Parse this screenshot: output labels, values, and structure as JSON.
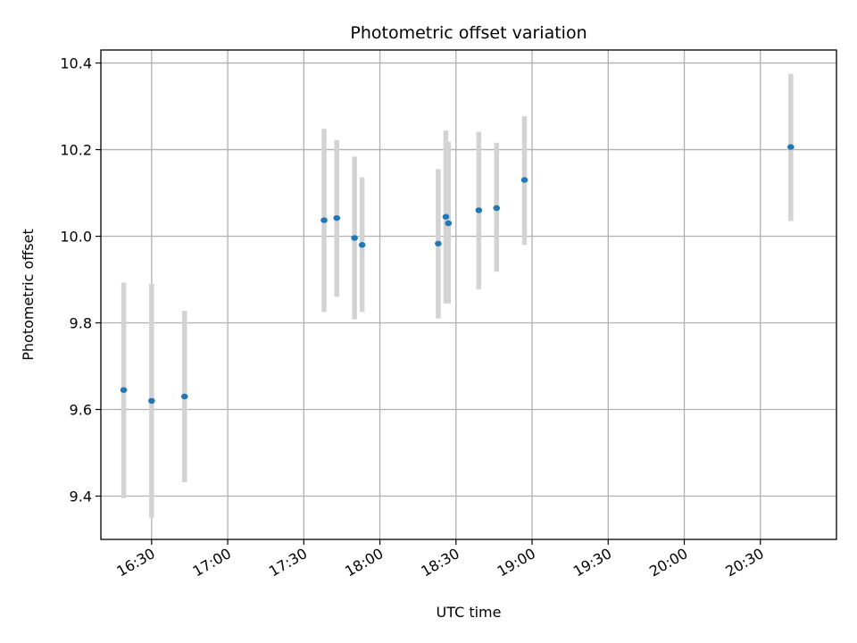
{
  "chart_data": {
    "type": "scatter",
    "title": "Photometric offset variation",
    "xlabel": "UTC time",
    "ylabel": "Photometric offset",
    "x_is_time": true,
    "xlim": [
      "16:10",
      "21:00"
    ],
    "ylim": [
      9.3,
      10.43
    ],
    "x_ticks": [
      "16:30",
      "17:00",
      "17:30",
      "18:00",
      "18:30",
      "19:00",
      "19:30",
      "20:00",
      "20:30"
    ],
    "y_ticks": [
      "9.4",
      "9.6",
      "9.8",
      "10.0",
      "10.2",
      "10.4"
    ],
    "grid": true,
    "point_color": "#1f77b4",
    "errorbar_color": "#d3d3d3",
    "points": [
      {
        "x": "16:19",
        "y": 9.645,
        "ylow": 9.395,
        "yhigh": 9.893
      },
      {
        "x": "16:30",
        "y": 9.62,
        "ylow": 9.35,
        "yhigh": 9.89
      },
      {
        "x": "16:43",
        "y": 9.63,
        "ylow": 9.432,
        "yhigh": 9.828
      },
      {
        "x": "17:38",
        "y": 10.037,
        "ylow": 9.825,
        "yhigh": 10.248
      },
      {
        "x": "17:43",
        "y": 10.042,
        "ylow": 9.86,
        "yhigh": 10.222
      },
      {
        "x": "17:50",
        "y": 9.996,
        "ylow": 9.808,
        "yhigh": 10.184
      },
      {
        "x": "17:53",
        "y": 9.98,
        "ylow": 9.825,
        "yhigh": 10.136
      },
      {
        "x": "18:23",
        "y": 9.983,
        "ylow": 9.81,
        "yhigh": 10.155
      },
      {
        "x": "18:26",
        "y": 10.045,
        "ylow": 9.845,
        "yhigh": 10.244
      },
      {
        "x": "18:27",
        "y": 10.03,
        "ylow": 9.845,
        "yhigh": 10.218
      },
      {
        "x": "18:39",
        "y": 10.06,
        "ylow": 9.878,
        "yhigh": 10.241
      },
      {
        "x": "18:46",
        "y": 10.065,
        "ylow": 9.918,
        "yhigh": 10.216
      },
      {
        "x": "18:57",
        "y": 10.13,
        "ylow": 9.98,
        "yhigh": 10.277
      },
      {
        "x": "20:42",
        "y": 10.206,
        "ylow": 10.035,
        "yhigh": 10.375
      }
    ]
  }
}
